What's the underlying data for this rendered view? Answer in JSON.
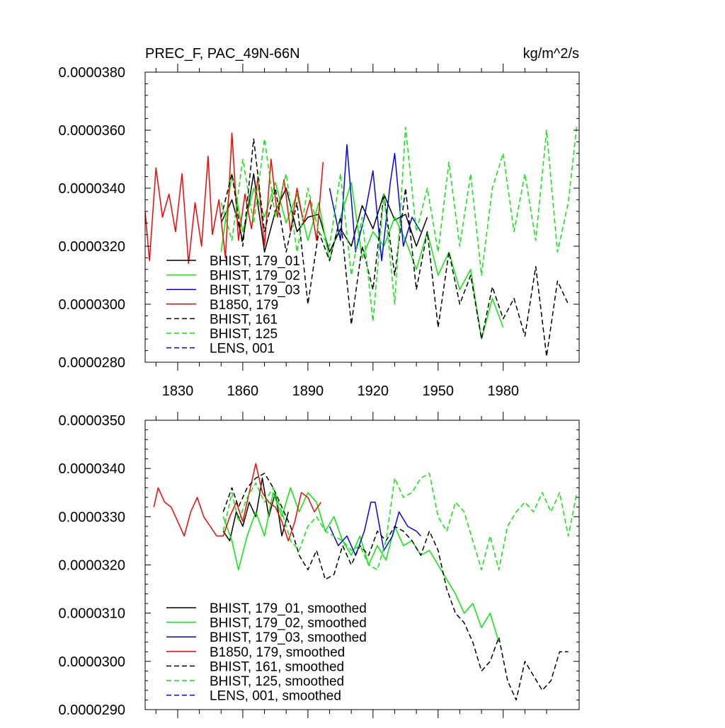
{
  "chart_data": [
    {
      "type": "line",
      "title": "PREC_F, PAC_49N-66N",
      "units": "kg/m^2/s",
      "xlim": [
        1815,
        2015
      ],
      "ylim": [
        2.8e-05,
        3.8e-05
      ],
      "yticks": [
        "0.0000280",
        "0.0000300",
        "0.0000320",
        "0.0000340",
        "0.0000360",
        "0.0000380"
      ],
      "yticks_values": [
        2.8e-05,
        3e-05,
        3.2e-05,
        3.4e-05,
        3.6e-05,
        3.8e-05
      ],
      "xticks": [
        "1830",
        "1860",
        "1890",
        "1920",
        "1950",
        "1980"
      ],
      "xticks_values": [
        1830,
        1860,
        1890,
        1920,
        1950,
        1980
      ],
      "legend_position": "lower-left",
      "series": [
        {
          "name": "BHIST, 179_01",
          "color": "#000000",
          "dash": "solid",
          "x": [
            1850,
            1855,
            1860,
            1865,
            1870,
            1875,
            1880,
            1885,
            1890,
            1895,
            1900,
            1905,
            1910,
            1915,
            1920,
            1925,
            1930,
            1935,
            1940,
            1945
          ],
          "values": [
            3.28e-05,
            3.36e-05,
            3.22e-05,
            3.45e-05,
            3.18e-05,
            3.32e-05,
            3.4e-05,
            3.25e-05,
            3.3e-05,
            3.31e-05,
            3.18e-05,
            3.26e-05,
            3.2e-05,
            3.34e-05,
            3.26e-05,
            3.38e-05,
            3.29e-05,
            3.31e-05,
            3.2e-05,
            3.3e-05
          ]
        },
        {
          "name": "BHIST, 179_02",
          "color": "#00ee00",
          "dash": "solid",
          "x": [
            1850,
            1855,
            1860,
            1865,
            1870,
            1875,
            1880,
            1885,
            1890,
            1895,
            1900,
            1905,
            1910,
            1915,
            1920,
            1925,
            1930,
            1935,
            1940,
            1945,
            1950,
            1955,
            1960,
            1965,
            1970,
            1975,
            1980
          ],
          "values": [
            3.18e-05,
            3.45e-05,
            3.25e-05,
            3.4e-05,
            3.3e-05,
            3.42e-05,
            3.28e-05,
            3.38e-05,
            3.22e-05,
            3.35e-05,
            3.15e-05,
            3.3e-05,
            3.42e-05,
            3.16e-05,
            3.25e-05,
            3.2e-05,
            3.3e-05,
            3.22e-05,
            3.12e-05,
            3.25e-05,
            3.1e-05,
            3.18e-05,
            3.05e-05,
            3.12e-05,
            2.88e-05,
            3.02e-05,
            2.92e-05
          ]
        },
        {
          "name": "BHIST, 179_03",
          "color": "#0000ff",
          "dash": "solid",
          "x": [
            1900,
            1905,
            1908,
            1912,
            1916,
            1920,
            1924,
            1928,
            1930,
            1934,
            1938,
            1942
          ],
          "values": [
            3.4e-05,
            3.22e-05,
            3.55e-05,
            3.18e-05,
            3.3e-05,
            3.46e-05,
            3.15e-05,
            3.42e-05,
            3.52e-05,
            3.2e-05,
            3.3e-05,
            3.25e-05
          ]
        },
        {
          "name": "B1850, 179",
          "color": "#ff0000",
          "dash": "solid",
          "x": [
            1815,
            1817,
            1820,
            1823,
            1826,
            1829,
            1832,
            1835,
            1838,
            1841,
            1844,
            1846,
            1849,
            1852,
            1855,
            1858,
            1861,
            1864,
            1867,
            1870,
            1873,
            1876,
            1879,
            1882,
            1885,
            1888,
            1891,
            1894,
            1897
          ],
          "values": [
            3.32e-05,
            3.15e-05,
            3.47e-05,
            3.3e-05,
            3.38e-05,
            3.25e-05,
            3.45e-05,
            3.14e-05,
            3.35e-05,
            3.2e-05,
            3.51e-05,
            3.24e-05,
            3.36e-05,
            3.16e-05,
            3.59e-05,
            3.22e-05,
            3.38e-05,
            3.26e-05,
            3.44e-05,
            3.2e-05,
            3.5e-05,
            3.3e-05,
            3.43e-05,
            3.25e-05,
            3.4e-05,
            3.28e-05,
            3.36e-05,
            3.22e-05,
            3.49e-05
          ]
        },
        {
          "name": "BHIST, 161",
          "color": "#000000",
          "dash": "dashed",
          "x": [
            1850,
            1855,
            1860,
            1865,
            1870,
            1875,
            1880,
            1885,
            1890,
            1895,
            1900,
            1905,
            1910,
            1915,
            1920,
            1925,
            1930,
            1935,
            1940,
            1945,
            1950,
            1955,
            1960,
            1965,
            1970,
            1975,
            1980,
            1985,
            1990,
            1995,
            2000,
            2005,
            2010
          ],
          "values": [
            3.3e-05,
            3.45e-05,
            3.2e-05,
            3.57e-05,
            3.25e-05,
            3.4e-05,
            3.18e-05,
            3.35e-05,
            3e-05,
            3.25e-05,
            3.15e-05,
            3.3e-05,
            2.93e-05,
            3.2e-05,
            3.05e-05,
            3.38e-05,
            3.1e-05,
            3.4e-05,
            3.05e-05,
            3.25e-05,
            2.92e-05,
            3.18e-05,
            3e-05,
            3.1e-05,
            2.88e-05,
            3.06e-05,
            2.95e-05,
            3.02e-05,
            2.89e-05,
            3.13e-05,
            2.82e-05,
            3.08e-05,
            3e-05
          ]
        },
        {
          "name": "BHIST, 125",
          "color": "#00ee00",
          "dash": "dashed",
          "x": [
            1850,
            1855,
            1860,
            1865,
            1870,
            1875,
            1880,
            1885,
            1890,
            1895,
            1900,
            1905,
            1910,
            1915,
            1920,
            1925,
            1930,
            1935,
            1940,
            1945,
            1950,
            1955,
            1960,
            1965,
            1970,
            1975,
            1980,
            1985,
            1990,
            1995,
            2000,
            2005,
            2010,
            2014
          ],
          "values": [
            3.35e-05,
            3.22e-05,
            3.5e-05,
            3.28e-05,
            3.57e-05,
            3.3e-05,
            3.45e-05,
            3.18e-05,
            3.4e-05,
            3.25e-05,
            3.2e-05,
            3.45e-05,
            3.1e-05,
            3.3e-05,
            2.94e-05,
            3.38e-05,
            3e-05,
            3.61e-05,
            3.25e-05,
            3.4e-05,
            3.18e-05,
            3.49e-05,
            3.2e-05,
            3.45e-05,
            3.1e-05,
            3.4e-05,
            3.52e-05,
            3.25e-05,
            3.45e-05,
            3.22e-05,
            3.6e-05,
            3.18e-05,
            3.35e-05,
            3.62e-05
          ]
        },
        {
          "name": "LENS, 001",
          "color": "#0000ff",
          "dash": "dashed",
          "x": [],
          "values": []
        }
      ]
    },
    {
      "type": "line",
      "title": "",
      "xlim": [
        1815,
        2015
      ],
      "ylim": [
        2.9e-05,
        3.5e-05
      ],
      "yticks": [
        "0.0000290",
        "0.0000300",
        "0.0000310",
        "0.0000320",
        "0.0000330",
        "0.0000340",
        "0.0000350"
      ],
      "yticks_values": [
        2.9e-05,
        3e-05,
        3.1e-05,
        3.2e-05,
        3.3e-05,
        3.4e-05,
        3.5e-05
      ],
      "xticks_values": [
        1830,
        1860,
        1890,
        1920,
        1950,
        1980
      ],
      "legend_position": "lower-left",
      "series": [
        {
          "name": "BHIST, 179_01, smoothed",
          "color": "#000000",
          "dash": "solid",
          "x": [
            1851,
            1854,
            1857,
            1860,
            1863,
            1866,
            1869,
            1872,
            1875,
            1878,
            1881
          ],
          "values": [
            3.27e-05,
            3.25e-05,
            3.31e-05,
            3.28e-05,
            3.33e-05,
            3.3e-05,
            3.38e-05,
            3.3e-05,
            3.35e-05,
            3.26e-05,
            3.31e-05
          ]
        },
        {
          "name": "BHIST, 179_02, smoothed",
          "color": "#00ee00",
          "dash": "solid",
          "x": [
            1851,
            1855,
            1858,
            1862,
            1866,
            1870,
            1874,
            1878,
            1882,
            1886,
            1890,
            1894,
            1898,
            1902,
            1906,
            1910,
            1914,
            1918,
            1922,
            1926,
            1930,
            1934,
            1938,
            1942,
            1946,
            1950,
            1954,
            1958,
            1962,
            1966,
            1970,
            1974,
            1978
          ],
          "values": [
            3.3e-05,
            3.25e-05,
            3.19e-05,
            3.26e-05,
            3.31e-05,
            3.26e-05,
            3.35e-05,
            3.3e-05,
            3.36e-05,
            3.31e-05,
            3.35e-05,
            3.33e-05,
            3.27e-05,
            3.3e-05,
            3.25e-05,
            3.22e-05,
            3.26e-05,
            3.2e-05,
            3.24e-05,
            3.21e-05,
            3.28e-05,
            3.24e-05,
            3.25e-05,
            3.22e-05,
            3.23e-05,
            3.2e-05,
            3.17e-05,
            3.14e-05,
            3.1e-05,
            3.12e-05,
            3.07e-05,
            3.1e-05,
            3.04e-05
          ]
        },
        {
          "name": "BHIST, 179_03, smoothed",
          "color": "#0000ff",
          "dash": "solid",
          "x": [
            1900,
            1904,
            1908,
            1912,
            1916,
            1919,
            1921,
            1925,
            1929,
            1932,
            1936,
            1940,
            1942
          ],
          "values": [
            3.28e-05,
            3.24e-05,
            3.26e-05,
            3.22e-05,
            3.27e-05,
            3.33e-05,
            3.33e-05,
            3.23e-05,
            3.26e-05,
            3.31e-05,
            3.28e-05,
            3.27e-05,
            3.26e-05
          ]
        },
        {
          "name": "B1850, 179, smoothed",
          "color": "#ff0000",
          "dash": "solid",
          "x": [
            1819,
            1821,
            1824,
            1827,
            1830,
            1833,
            1836,
            1839,
            1842,
            1845,
            1848,
            1851,
            1854,
            1857,
            1860,
            1863,
            1866,
            1869,
            1872,
            1875,
            1878,
            1881,
            1884,
            1887,
            1890,
            1893,
            1896
          ],
          "values": [
            3.32e-05,
            3.36e-05,
            3.33e-05,
            3.32e-05,
            3.29e-05,
            3.26e-05,
            3.31e-05,
            3.34e-05,
            3.3e-05,
            3.28e-05,
            3.26e-05,
            3.26e-05,
            3.3e-05,
            3.33e-05,
            3.29e-05,
            3.35e-05,
            3.41e-05,
            3.35e-05,
            3.33e-05,
            3.32e-05,
            3.29e-05,
            3.25e-05,
            3.29e-05,
            3.35e-05,
            3.34e-05,
            3.31e-05,
            3.33e-05
          ]
        },
        {
          "name": "BHIST, 161, smoothed",
          "color": "#000000",
          "dash": "dashed",
          "x": [
            1851,
            1855,
            1858,
            1862,
            1866,
            1870,
            1874,
            1878,
            1882,
            1886,
            1890,
            1894,
            1898,
            1902,
            1906,
            1910,
            1914,
            1918,
            1922,
            1926,
            1930,
            1934,
            1938,
            1942,
            1946,
            1950,
            1954,
            1958,
            1962,
            1966,
            1970,
            1974,
            1978,
            1982,
            1986,
            1990,
            1994,
            1998,
            2002,
            2006,
            2010
          ],
          "values": [
            3.31e-05,
            3.36e-05,
            3.32e-05,
            3.36e-05,
            3.38e-05,
            3.39e-05,
            3.36e-05,
            3.32e-05,
            3.28e-05,
            3.22e-05,
            3.19e-05,
            3.23e-05,
            3.17e-05,
            3.18e-05,
            3.24e-05,
            3.2e-05,
            3.24e-05,
            3.22e-05,
            3.27e-05,
            3.25e-05,
            3.28e-05,
            3.27e-05,
            3.25e-05,
            3.22e-05,
            3.27e-05,
            3.23e-05,
            3.15e-05,
            3.1e-05,
            3.08e-05,
            3.04e-05,
            2.98e-05,
            3e-05,
            3.05e-05,
            2.96e-05,
            2.92e-05,
            3e-05,
            2.97e-05,
            2.94e-05,
            2.96e-05,
            3.02e-05,
            3.02e-05
          ]
        },
        {
          "name": "BHIST, 125, smoothed",
          "color": "#00ee00",
          "dash": "dashed",
          "x": [
            1851,
            1855,
            1858,
            1862,
            1866,
            1870,
            1874,
            1878,
            1882,
            1886,
            1890,
            1894,
            1898,
            1902,
            1906,
            1910,
            1914,
            1918,
            1922,
            1926,
            1930,
            1934,
            1938,
            1942,
            1946,
            1950,
            1954,
            1958,
            1962,
            1966,
            1970,
            1974,
            1978,
            1982,
            1986,
            1990,
            1994,
            1998,
            2002,
            2006,
            2010,
            2014
          ],
          "values": [
            3.27e-05,
            3.35e-05,
            3.29e-05,
            3.34e-05,
            3.37e-05,
            3.33e-05,
            3.36e-05,
            3.31e-05,
            3.25e-05,
            3.23e-05,
            3.28e-05,
            3.3e-05,
            3.27e-05,
            3.26e-05,
            3.25e-05,
            3.23e-05,
            3.24e-05,
            3.2e-05,
            3.19e-05,
            3.25e-05,
            3.38e-05,
            3.34e-05,
            3.35e-05,
            3.38e-05,
            3.39e-05,
            3.3e-05,
            3.27e-05,
            3.33e-05,
            3.31e-05,
            3.25e-05,
            3.19e-05,
            3.26e-05,
            3.19e-05,
            3.28e-05,
            3.31e-05,
            3.33e-05,
            3.31e-05,
            3.35e-05,
            3.31e-05,
            3.35e-05,
            3.26e-05,
            3.35e-05
          ]
        },
        {
          "name": "LENS, 001, smoothed",
          "color": "#0000ff",
          "dash": "dashed",
          "x": [],
          "values": []
        }
      ]
    }
  ]
}
